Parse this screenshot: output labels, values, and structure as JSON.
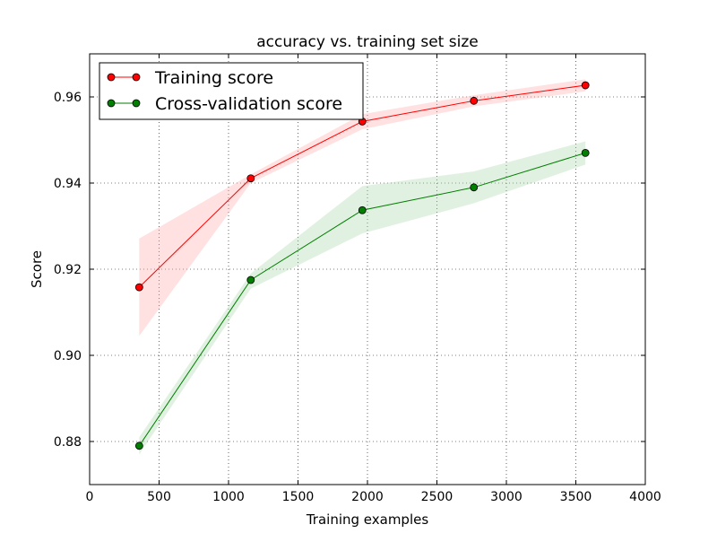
{
  "chart_data": {
    "type": "line",
    "title": "accuracy vs. training set size",
    "xlabel": "Training examples",
    "ylabel": "Score",
    "xlim": [
      0,
      4000
    ],
    "ylim": [
      0.87,
      0.97
    ],
    "xticks": [
      0,
      500,
      1000,
      1500,
      2000,
      2500,
      3000,
      3500,
      4000
    ],
    "yticks": [
      0.88,
      0.9,
      0.92,
      0.94,
      0.96
    ],
    "xtick_labels": [
      "0",
      "500",
      "1000",
      "1500",
      "2000",
      "2500",
      "3000",
      "3500",
      "4000"
    ],
    "ytick_labels": [
      "0.88",
      "0.90",
      "0.92",
      "0.94",
      "0.96"
    ],
    "grid": true,
    "legend_position": "top-left",
    "x": [
      357,
      1160,
      1963,
      2766,
      3569
    ],
    "series": [
      {
        "name": "Training score",
        "color": "#ff0000",
        "band_color": "#ffaaaa",
        "values": [
          0.9158,
          0.9411,
          0.9543,
          0.9591,
          0.9627
        ],
        "lower": [
          0.9045,
          0.94,
          0.9525,
          0.9578,
          0.9613
        ],
        "upper": [
          0.9271,
          0.942,
          0.956,
          0.9604,
          0.9641
        ]
      },
      {
        "name": "Cross-validation score",
        "color": "#007f00",
        "band_color": "#a8d8a8",
        "values": [
          0.879,
          0.9175,
          0.9337,
          0.939,
          0.947
        ],
        "lower": [
          0.877,
          0.9155,
          0.9283,
          0.9353,
          0.9443
        ],
        "upper": [
          0.881,
          0.919,
          0.9393,
          0.9427,
          0.9497
        ]
      }
    ]
  }
}
